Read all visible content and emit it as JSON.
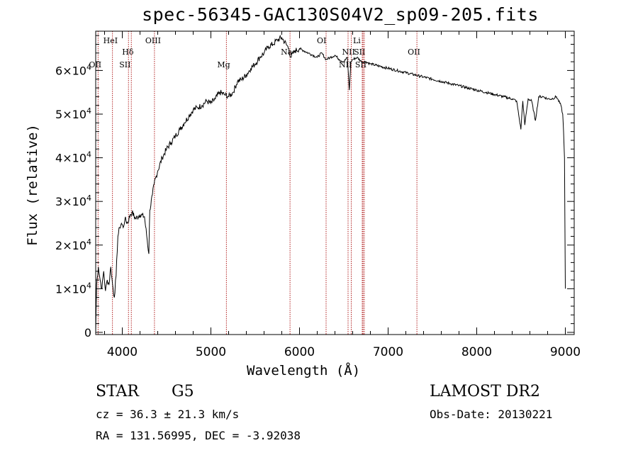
{
  "title": "spec-56345-GAC130S04V2_sp09-205.fits",
  "info": {
    "class": "STAR",
    "subclass": "G5",
    "survey": "LAMOST DR2",
    "redshift": "cz = 36.3 ± 21.3 km/s",
    "obs_date": "Obs-Date: 20130221",
    "coords": "RA = 131.56995, DEC =  -3.92038"
  },
  "chart_data": {
    "type": "line",
    "title": "spec-56345-GAC130S04V2_sp09-205.fits",
    "xlabel": "Wavelength (Å)",
    "ylabel": "Flux (relative)",
    "xlim": [
      3700,
      9100
    ],
    "ylim": [
      -500,
      69000
    ],
    "xticks": [
      4000,
      5000,
      6000,
      7000,
      8000,
      9000
    ],
    "yticks": [
      {
        "value": 0,
        "mantissa": "0",
        "exp": ""
      },
      {
        "value": 10000,
        "mantissa": "1×10",
        "exp": "4"
      },
      {
        "value": 20000,
        "mantissa": "2×10",
        "exp": "4"
      },
      {
        "value": 30000,
        "mantissa": "3×10",
        "exp": "4"
      },
      {
        "value": 40000,
        "mantissa": "4×10",
        "exp": "4"
      },
      {
        "value": 50000,
        "mantissa": "5×10",
        "exp": "4"
      },
      {
        "value": 60000,
        "mantissa": "6×10",
        "exp": "4"
      }
    ],
    "spectrum": {
      "name": "flux",
      "x": [
        3700,
        3710,
        3730,
        3750,
        3770,
        3790,
        3810,
        3830,
        3850,
        3870,
        3890,
        3910,
        3930,
        3950,
        3970,
        3990,
        4010,
        4030,
        4060,
        4090,
        4110,
        4150,
        4200,
        4250,
        4300,
        4310,
        4340,
        4360,
        4400,
        4450,
        4500,
        4550,
        4600,
        4650,
        4700,
        4750,
        4800,
        4850,
        4900,
        4950,
        5000,
        5050,
        5100,
        5150,
        5200,
        5250,
        5300,
        5350,
        5400,
        5450,
        5500,
        5550,
        5600,
        5650,
        5700,
        5750,
        5800,
        5850,
        5880,
        5900,
        5950,
        6000,
        6050,
        6100,
        6150,
        6200,
        6250,
        6300,
        6350,
        6400,
        6450,
        6500,
        6540,
        6562,
        6580,
        6600,
        6650,
        6700,
        6750,
        6800,
        6900,
        7000,
        7100,
        7200,
        7300,
        7400,
        7500,
        7600,
        7700,
        7800,
        7900,
        8000,
        8100,
        8200,
        8300,
        8400,
        8450,
        8498,
        8520,
        8542,
        8580,
        8620,
        8662,
        8700,
        8750,
        8800,
        8850,
        8900,
        8950,
        8970,
        8980,
        8990,
        9000
      ],
      "y": [
        0,
        11000,
        15000,
        12000,
        10000,
        14000,
        9500,
        12000,
        11000,
        15000,
        11000,
        8000,
        13000,
        22000,
        24000,
        25000,
        24000,
        26000,
        25000,
        27000,
        27500,
        26000,
        27000,
        26500,
        18000,
        28000,
        31500,
        34000,
        37000,
        40000,
        42000,
        43500,
        45000,
        46500,
        48000,
        49500,
        51000,
        51500,
        52000,
        53000,
        52500,
        53500,
        55000,
        54500,
        54000,
        55000,
        57500,
        58000,
        59000,
        60500,
        61500,
        63000,
        64000,
        65500,
        66000,
        67000,
        67500,
        66000,
        65000,
        63000,
        64500,
        65000,
        64500,
        64000,
        63500,
        63000,
        64000,
        62500,
        63000,
        63500,
        62500,
        62000,
        63000,
        55500,
        62000,
        62500,
        63000,
        62000,
        62000,
        61500,
        61000,
        60500,
        60000,
        59500,
        59000,
        58500,
        58000,
        57500,
        57000,
        56500,
        56000,
        55500,
        55000,
        54500,
        54000,
        53500,
        53000,
        46500,
        53000,
        47500,
        53500,
        53000,
        48500,
        54000,
        54000,
        53500,
        53500,
        54000,
        52000,
        50000,
        46000,
        40000,
        10000
      ]
    },
    "lines": [
      {
        "label": "OII",
        "wavelength": 3727,
        "row": "low"
      },
      {
        "label": "HeI",
        "wavelength": 3889,
        "row": "high"
      },
      {
        "label": "SII",
        "wavelength": 4070,
        "row": "low"
      },
      {
        "label": "Hδ",
        "wavelength": 4102,
        "row": "mid"
      },
      {
        "label": "OIII",
        "wavelength": 4363,
        "row": "high"
      },
      {
        "label": "Mg",
        "wavelength": 5175,
        "row": "low"
      },
      {
        "label": "Na",
        "wavelength": 5893,
        "row": "mid"
      },
      {
        "label": "OI",
        "wavelength": 6300,
        "row": "high"
      },
      {
        "label": "NII",
        "wavelength": 6548,
        "row": "low"
      },
      {
        "label": "NII",
        "wavelength": 6584,
        "row": "mid"
      },
      {
        "label": "Li",
        "wavelength": 6708,
        "row": "high"
      },
      {
        "label": "SII",
        "wavelength": 6717,
        "row": "mid"
      },
      {
        "label": "SII",
        "wavelength": 6731,
        "row": "low"
      },
      {
        "label": "OII",
        "wavelength": 7325,
        "row": "mid"
      }
    ]
  }
}
